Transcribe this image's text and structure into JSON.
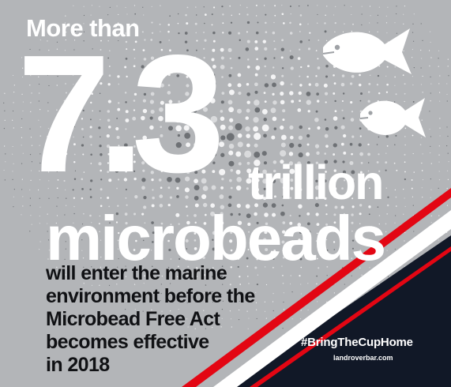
{
  "headline": {
    "lead": "More than",
    "number": "7.3",
    "unit": "trillion",
    "noun": "microbeads"
  },
  "body_lines": [
    "will enter the marine",
    "environment before the",
    "Microbead Free Act",
    "becomes effective",
    "in 2018"
  ],
  "footer": {
    "hashtag": "#BringTheCupHome",
    "url": "landroverbar.com"
  },
  "decoration": {
    "fish_icons": [
      "fish-icon",
      "fish-icon"
    ],
    "background": "dotted-microbead-pattern"
  },
  "colors": {
    "background": "#b3b5b8",
    "headline_text": "#ffffff",
    "body_text": "#101114",
    "navy": "#111827",
    "red_stripe": "#e30613"
  }
}
